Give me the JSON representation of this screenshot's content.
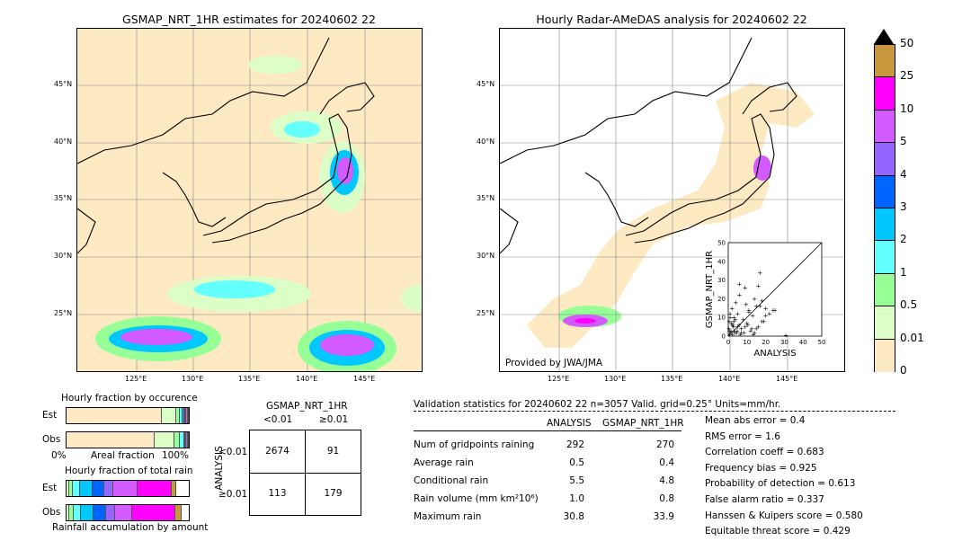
{
  "left_map": {
    "title": "GSMAP_NRT_1HR estimates for 20240602 22",
    "lat_ticks": [
      "45°N",
      "40°N",
      "35°N",
      "30°N",
      "25°N"
    ],
    "lon_ticks": [
      "125°E",
      "130°E",
      "135°E",
      "140°E",
      "145°E"
    ]
  },
  "right_map": {
    "title": "Hourly Radar-AMeDAS analysis for 20240602 22",
    "lat_ticks": [
      "45°N",
      "40°N",
      "35°N",
      "30°N",
      "25°N"
    ],
    "lon_ticks": [
      "125°E",
      "130°E",
      "135°E",
      "140°E",
      "145°E"
    ],
    "credit": "Provided by JWA/JMA"
  },
  "colorbar": {
    "labels": [
      "50",
      "25",
      "10",
      "5",
      "4",
      "3",
      "2",
      "1",
      "0.5",
      "0.01",
      "0"
    ],
    "colors": [
      "#c8963c",
      "#ff00ff",
      "#d25aff",
      "#9664ff",
      "#0064ff",
      "#00c8ff",
      "#64ffff",
      "#96ff96",
      "#dcffc8",
      "#fde9c2"
    ]
  },
  "chart_data": [
    {
      "type": "scatter",
      "title": "",
      "xlabel": "ANALYSIS",
      "ylabel": "GSMAP_NRT_1HR",
      "xlim": [
        0,
        50
      ],
      "ylim": [
        0,
        50
      ],
      "xticks": [
        "0",
        "10",
        "20",
        "30",
        "40",
        "50"
      ],
      "yticks": [
        "0",
        "10",
        "20",
        "30",
        "40",
        "50"
      ],
      "x": [
        0.5,
        1,
        1.5,
        2,
        2.5,
        3,
        3.5,
        4,
        5,
        6,
        7,
        8,
        9,
        10,
        11,
        12,
        13,
        14,
        15,
        16,
        17,
        18,
        19,
        20,
        22,
        25,
        0.8,
        1.2,
        2.2,
        3.2,
        4.5,
        6.5,
        8.5,
        10.5,
        12.5,
        1,
        2,
        3,
        5,
        7,
        9,
        11,
        15,
        17,
        30.8,
        0.3,
        0.7,
        1.8,
        2.8,
        3.8,
        4.8,
        5.8,
        14,
        16,
        18,
        20,
        24,
        9.5,
        13.5,
        6
      ],
      "y": [
        8,
        12,
        3,
        15,
        6,
        10,
        2,
        18,
        5,
        22,
        4,
        9,
        26,
        7,
        14,
        3,
        11,
        2,
        16,
        5,
        34,
        19,
        8,
        15,
        12,
        14,
        1,
        2,
        1,
        3,
        2,
        1,
        2,
        6,
        4,
        10,
        6,
        8,
        12,
        2,
        5,
        13,
        4,
        16,
        0.5,
        4,
        3,
        7,
        5,
        9,
        3,
        6,
        20,
        27,
        8,
        11,
        14,
        17,
        1,
        28
      ]
    },
    {
      "type": "bar",
      "title": "Hourly fraction by occurence",
      "categories": [
        "Est",
        "Obs"
      ],
      "xlabel_left": "0%",
      "xlabel": "Areal fraction",
      "xlabel_right": "100%",
      "series_colors": [
        "#fde9c2",
        "#dcffc8",
        "#96ff96",
        "#64ffff",
        "#00c8ff",
        "#0064ff",
        "#9664ff",
        "#d25aff",
        "#ff00ff",
        "#c8963c"
      ],
      "values": [
        [
          0.78,
          0.12,
          0.03,
          0.02,
          0.01,
          0.01,
          0.01,
          0.01,
          0.005,
          0.005
        ],
        [
          0.72,
          0.16,
          0.05,
          0.03,
          0.01,
          0.01,
          0.01,
          0.005,
          0.005,
          0.0
        ]
      ]
    },
    {
      "type": "bar",
      "title": "Hourly fraction of total rain",
      "categories": [
        "Est",
        "Obs"
      ],
      "xlabel": "Rainfall accumulation by amount",
      "series_colors": [
        "#fde9c2",
        "#dcffc8",
        "#96ff96",
        "#64ffff",
        "#00c8ff",
        "#0064ff",
        "#9664ff",
        "#d25aff",
        "#ff00ff",
        "#c8963c"
      ],
      "values": [
        [
          0.0,
          0.02,
          0.03,
          0.06,
          0.1,
          0.1,
          0.07,
          0.2,
          0.28,
          0.04
        ],
        [
          0.0,
          0.02,
          0.04,
          0.06,
          0.1,
          0.1,
          0.08,
          0.14,
          0.35,
          0.05
        ]
      ]
    },
    {
      "type": "table",
      "title": "GSMAP_NRT_1HR",
      "col_headers": [
        "<0.01",
        "≥0.01"
      ],
      "row_axis": "ANALYSIS",
      "row_headers": [
        "<0.01",
        "≥0.01"
      ],
      "cells": [
        [
          "2674",
          "91"
        ],
        [
          "113",
          "179"
        ]
      ]
    }
  ],
  "validation": {
    "header": "Validation statistics for 20240602 22  n=3057 Valid. grid=0.25° Units=mm/hr.",
    "col_analysis": "ANALYSIS",
    "col_gsmap": "GSMAP_NRT_1HR",
    "rows": [
      {
        "label": "Num of gridpoints raining",
        "a": "292",
        "g": "270"
      },
      {
        "label": "Average rain",
        "a": "0.5",
        "g": "0.4"
      },
      {
        "label": "Conditional rain",
        "a": "5.5",
        "g": "4.8"
      },
      {
        "label": "Rain volume (mm km²10⁶)",
        "a": "1.0",
        "g": "0.8"
      },
      {
        "label": "Maximum rain",
        "a": "30.8",
        "g": "33.9"
      }
    ],
    "scores": [
      "Mean abs error =    0.4",
      "RMS error =    1.6",
      "Correlation coeff =  0.683",
      "Frequency bias =  0.925",
      "Probability of detection =  0.613",
      "False alarm ratio =  0.337",
      "Hanssen & Kuipers score =  0.580",
      "Equitable threat score =  0.429"
    ]
  }
}
